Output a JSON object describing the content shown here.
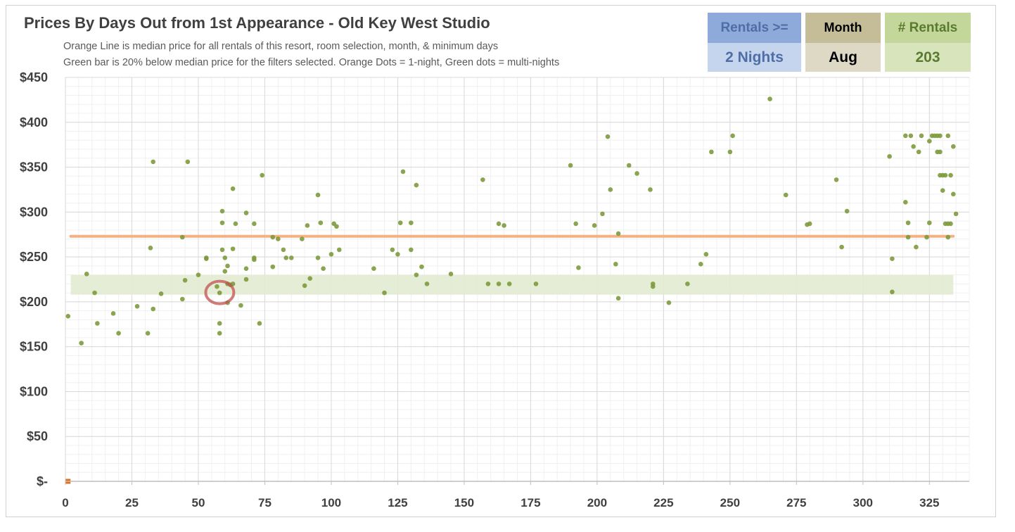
{
  "header": {
    "title": "Prices By Days Out from 1st Appearance - Old Key West Studio",
    "subtitle_line1": "Orange Line is median price for all rentals of this resort, room selection, month, & minimum days",
    "subtitle_line2": "Green bar is 20% below median price for the filters selected. Orange Dots = 1-night, Green dots = multi-nights"
  },
  "filters": {
    "rentals_label": "Rentals >=",
    "rentals_value": "2 Nights",
    "month_label": "Month",
    "month_value": "Aug",
    "count_label": "# Rentals",
    "count_value": "203"
  },
  "colors": {
    "rentals_header": "#8eaadb",
    "rentals_value_bg": "#c5d5ee",
    "rentals_text": "#4f6ea6",
    "month_header": "#c4bd97",
    "month_value_bg": "#ddd9c4",
    "month_text": "#000000",
    "count_header": "#c4d79b",
    "count_value_bg": "#d8e4bc",
    "count_text": "#5a7a2e",
    "dot_multi": "#7d9a3c",
    "dot_single": "#e07020",
    "median_line": "#f4b183",
    "discount_band": "#e2ebd3",
    "highlight_ring": "#c0504d"
  },
  "chart_data": {
    "type": "scatter",
    "xlim": [
      0,
      340
    ],
    "ylim": [
      0,
      450
    ],
    "x_ticks": [
      0,
      25,
      50,
      75,
      100,
      125,
      150,
      175,
      200,
      225,
      250,
      275,
      300,
      325
    ],
    "y_ticks": [
      0,
      50,
      100,
      150,
      200,
      250,
      300,
      350,
      400,
      450
    ],
    "y_tick_labels": [
      "$-",
      "$50",
      "$100",
      "$150",
      "$200",
      "$250",
      "$300",
      "$350",
      "$400",
      "$450"
    ],
    "grid": true,
    "median_price": 273,
    "median_x_range": [
      2,
      334
    ],
    "discount_band": {
      "y_from": 208,
      "y_to": 230,
      "x_from": 2,
      "x_to": 334
    },
    "highlight": {
      "x": 57,
      "y": 212
    },
    "single_night_points": [
      [
        1,
        0
      ]
    ],
    "multi_night_points": [
      [
        1,
        184
      ],
      [
        6,
        154
      ],
      [
        8,
        231
      ],
      [
        11,
        210
      ],
      [
        12,
        176
      ],
      [
        18,
        187
      ],
      [
        20,
        165
      ],
      [
        27,
        195
      ],
      [
        31,
        165
      ],
      [
        32,
        260
      ],
      [
        33,
        192
      ],
      [
        33,
        356
      ],
      [
        36,
        209
      ],
      [
        44,
        272
      ],
      [
        44,
        203
      ],
      [
        45,
        224
      ],
      [
        46,
        356
      ],
      [
        50,
        230
      ],
      [
        53,
        249
      ],
      [
        53,
        248
      ],
      [
        57,
        217
      ],
      [
        58,
        176
      ],
      [
        58,
        210
      ],
      [
        58,
        165
      ],
      [
        59,
        301
      ],
      [
        59,
        288
      ],
      [
        59,
        258
      ],
      [
        60,
        249
      ],
      [
        60,
        234
      ],
      [
        61,
        240
      ],
      [
        61,
        220
      ],
      [
        61,
        199
      ],
      [
        62,
        219
      ],
      [
        63,
        326
      ],
      [
        63,
        259
      ],
      [
        63,
        220
      ],
      [
        64,
        287
      ],
      [
        66,
        196
      ],
      [
        68,
        299
      ],
      [
        68,
        237
      ],
      [
        68,
        225
      ],
      [
        71,
        287
      ],
      [
        71,
        249
      ],
      [
        71,
        247
      ],
      [
        73,
        176
      ],
      [
        74,
        341
      ],
      [
        78,
        272
      ],
      [
        78,
        239
      ],
      [
        80,
        270
      ],
      [
        82,
        258
      ],
      [
        83,
        249
      ],
      [
        85,
        249
      ],
      [
        89,
        270
      ],
      [
        90,
        218
      ],
      [
        91,
        285
      ],
      [
        92,
        226
      ],
      [
        95,
        319
      ],
      [
        95,
        249
      ],
      [
        96,
        288
      ],
      [
        97,
        237
      ],
      [
        100,
        253
      ],
      [
        101,
        287
      ],
      [
        102,
        284
      ],
      [
        103,
        258
      ],
      [
        116,
        237
      ],
      [
        120,
        210
      ],
      [
        123,
        258
      ],
      [
        125,
        253
      ],
      [
        126,
        288
      ],
      [
        127,
        345
      ],
      [
        130,
        288
      ],
      [
        130,
        258
      ],
      [
        132,
        330
      ],
      [
        132,
        230
      ],
      [
        134,
        239
      ],
      [
        136,
        220
      ],
      [
        145,
        231
      ],
      [
        157,
        336
      ],
      [
        159,
        220
      ],
      [
        163,
        287
      ],
      [
        163,
        220
      ],
      [
        165,
        285
      ],
      [
        167,
        220
      ],
      [
        177,
        220
      ],
      [
        190,
        352
      ],
      [
        192,
        287
      ],
      [
        193,
        238
      ],
      [
        199,
        285
      ],
      [
        202,
        298
      ],
      [
        204,
        384
      ],
      [
        205,
        325
      ],
      [
        207,
        242
      ],
      [
        208,
        276
      ],
      [
        208,
        204
      ],
      [
        212,
        352
      ],
      [
        215,
        343
      ],
      [
        220,
        325
      ],
      [
        221,
        220
      ],
      [
        221,
        217
      ],
      [
        227,
        199
      ],
      [
        234,
        220
      ],
      [
        239,
        242
      ],
      [
        241,
        253
      ],
      [
        243,
        367
      ],
      [
        250,
        367
      ],
      [
        251,
        385
      ],
      [
        265,
        426
      ],
      [
        271,
        319
      ],
      [
        279,
        286
      ],
      [
        280,
        287
      ],
      [
        290,
        336
      ],
      [
        292,
        261
      ],
      [
        294,
        301
      ],
      [
        310,
        362
      ],
      [
        311,
        248
      ],
      [
        311,
        211
      ],
      [
        316,
        385
      ],
      [
        316,
        311
      ],
      [
        317,
        288
      ],
      [
        317,
        272
      ],
      [
        318,
        385
      ],
      [
        319,
        373
      ],
      [
        320,
        261
      ],
      [
        321,
        367
      ],
      [
        322,
        385
      ],
      [
        324,
        272
      ],
      [
        325,
        379
      ],
      [
        325,
        288
      ],
      [
        326,
        385
      ],
      [
        327,
        385
      ],
      [
        328,
        385
      ],
      [
        328,
        367
      ],
      [
        329,
        341
      ],
      [
        329,
        385
      ],
      [
        329,
        367
      ],
      [
        330,
        324
      ],
      [
        330,
        341
      ],
      [
        331,
        287
      ],
      [
        331,
        341
      ],
      [
        332,
        385
      ],
      [
        332,
        287
      ],
      [
        332,
        272
      ],
      [
        333,
        287
      ],
      [
        333,
        341
      ],
      [
        334,
        320
      ],
      [
        334,
        373
      ],
      [
        335,
        298
      ]
    ]
  }
}
